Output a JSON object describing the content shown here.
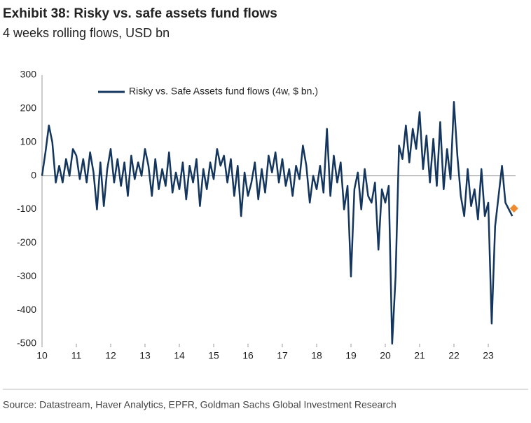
{
  "chart_data": {
    "type": "line",
    "title": "Exhibit 38: Risky vs. safe assets fund flows",
    "subtitle": "4 weeks rolling flows, USD bn",
    "source": "Source: Datastream, Haver Analytics, EPFR, Goldman Sachs Global Investment Research",
    "x": [
      10.0,
      10.1,
      10.2,
      10.3,
      10.4,
      10.5,
      10.6,
      10.7,
      10.8,
      10.9,
      11.0,
      11.1,
      11.2,
      11.3,
      11.4,
      11.5,
      11.6,
      11.7,
      11.8,
      11.9,
      12.0,
      12.1,
      12.2,
      12.3,
      12.4,
      12.5,
      12.6,
      12.7,
      12.8,
      12.9,
      13.0,
      13.1,
      13.2,
      13.3,
      13.4,
      13.5,
      13.6,
      13.7,
      13.8,
      13.9,
      14.0,
      14.1,
      14.2,
      14.3,
      14.4,
      14.5,
      14.6,
      14.7,
      14.8,
      14.9,
      15.0,
      15.1,
      15.2,
      15.3,
      15.4,
      15.5,
      15.6,
      15.7,
      15.8,
      15.9,
      16.0,
      16.1,
      16.2,
      16.3,
      16.4,
      16.5,
      16.6,
      16.7,
      16.8,
      16.9,
      17.0,
      17.1,
      17.2,
      17.3,
      17.4,
      17.5,
      17.6,
      17.7,
      17.8,
      17.9,
      18.0,
      18.1,
      18.2,
      18.3,
      18.4,
      18.5,
      18.6,
      18.7,
      18.8,
      18.9,
      19.0,
      19.1,
      19.2,
      19.3,
      19.4,
      19.5,
      19.6,
      19.7,
      19.8,
      19.9,
      20.0,
      20.1,
      20.2,
      20.3,
      20.4,
      20.5,
      20.6,
      20.7,
      20.8,
      20.9,
      21.0,
      21.1,
      21.2,
      21.3,
      21.4,
      21.5,
      21.6,
      21.7,
      21.8,
      21.9,
      22.0,
      22.1,
      22.2,
      22.3,
      22.4,
      22.5,
      22.6,
      22.7,
      22.8,
      22.9,
      23.0,
      23.1,
      23.2,
      23.3,
      23.4,
      23.5,
      23.6,
      23.7
    ],
    "series": [
      {
        "name": "Risky vs. Safe Assets fund flows (4w, $ bn.)",
        "color": "#14365e",
        "values": [
          0,
          70,
          150,
          100,
          -20,
          30,
          -20,
          50,
          0,
          80,
          60,
          -10,
          50,
          -20,
          70,
          10,
          -100,
          40,
          -90,
          20,
          80,
          -20,
          50,
          -30,
          40,
          -60,
          60,
          -10,
          40,
          0,
          80,
          30,
          -60,
          50,
          -40,
          20,
          -30,
          70,
          -50,
          10,
          -40,
          40,
          -70,
          30,
          -20,
          50,
          -90,
          20,
          -40,
          40,
          -10,
          80,
          30,
          60,
          -20,
          50,
          -60,
          30,
          -120,
          10,
          -60,
          -20,
          40,
          -70,
          20,
          -50,
          60,
          10,
          70,
          -20,
          50,
          -30,
          20,
          -60,
          30,
          -10,
          90,
          30,
          -80,
          0,
          -40,
          30,
          -50,
          140,
          -60,
          60,
          -20,
          40,
          -100,
          -30,
          -300,
          -40,
          10,
          -100,
          20,
          -60,
          -80,
          -20,
          -220,
          -40,
          -80,
          -30,
          -500,
          -300,
          90,
          50,
          150,
          40,
          140,
          80,
          190,
          20,
          120,
          -20,
          110,
          -30,
          160,
          -40,
          80,
          -10,
          220,
          60,
          -60,
          -120,
          20,
          -90,
          -40,
          -130,
          20,
          -120,
          -80,
          -440,
          -150,
          -60,
          30,
          -80,
          -100,
          -120
        ]
      }
    ],
    "marker": {
      "x": 23.75,
      "value": -97,
      "color": "#f08a2e"
    },
    "xlim": [
      10,
      24
    ],
    "xticks": [
      10,
      11,
      12,
      13,
      14,
      15,
      16,
      17,
      18,
      19,
      20,
      21,
      22,
      23
    ],
    "ylim": [
      -500,
      300
    ],
    "yticks": [
      -500,
      -400,
      -300,
      -200,
      -100,
      0,
      100,
      200,
      300
    ]
  }
}
